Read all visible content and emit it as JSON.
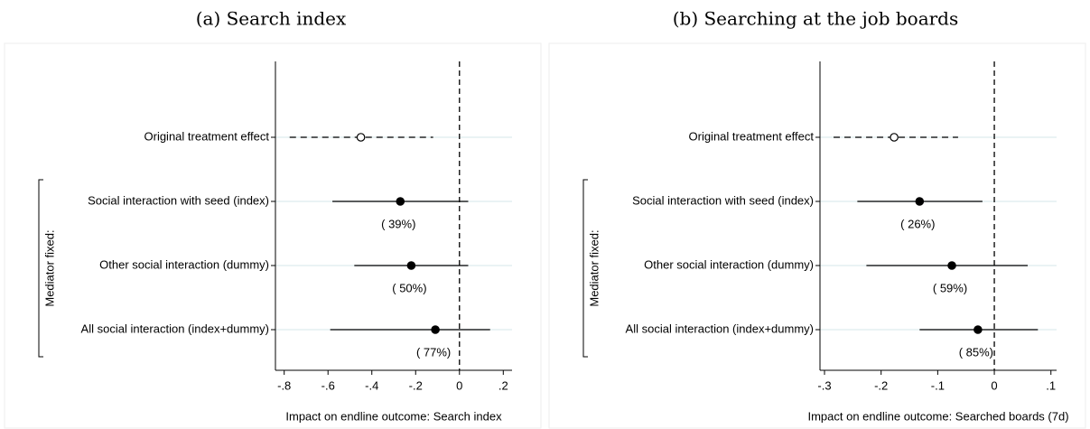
{
  "chart_data": [
    {
      "type": "coefplot",
      "title": "(a) Search index",
      "x_label": "Impact on endline outcome: Search index",
      "categories": [
        "Original treatment effect",
        "Social interaction with seed (index)",
        "Other social interaction (dummy)",
        "All social interaction (index+dummy)"
      ],
      "values": [
        -0.45,
        -0.27,
        -0.22,
        -0.11
      ],
      "ci_low": [
        -0.775,
        -0.58,
        -0.48,
        -0.59
      ],
      "ci_high": [
        -0.12,
        0.04,
        0.04,
        0.14
      ],
      "shares": [
        null,
        "( 39%)",
        "( 50%)",
        "( 77%)"
      ],
      "styles": [
        "dashed",
        "solid",
        "solid",
        "solid"
      ],
      "group": {
        "label": "Mediator fixed:",
        "rows": [
          1,
          3
        ]
      },
      "xref": 0,
      "xlim": [
        -0.84,
        0.24
      ],
      "xticks": [
        {
          "value": -0.8,
          "label": "-.8"
        },
        {
          "value": -0.6,
          "label": "-.6"
        },
        {
          "value": -0.4,
          "label": "-.4"
        },
        {
          "value": -0.2,
          "label": "-.2"
        },
        0,
        {
          "value": 0.2,
          "label": ".2"
        }
      ],
      "grid": true
    },
    {
      "type": "coefplot",
      "title": "(b) Searching at the job boards",
      "x_label": "Impact on endline outcome: Searched boards (7d)",
      "categories": [
        "Original treatment effect",
        "Social interaction with seed (index)",
        "Other social interaction (dummy)",
        "All social interaction (index+dummy)"
      ],
      "values": [
        -0.177,
        -0.132,
        -0.075,
        -0.029
      ],
      "ci_low": [
        -0.284,
        -0.242,
        -0.226,
        -0.132
      ],
      "ci_high": [
        -0.064,
        -0.021,
        0.059,
        0.077
      ],
      "shares": [
        null,
        "( 26%)",
        "( 59%)",
        "( 85%)"
      ],
      "styles": [
        "dashed",
        "solid",
        "solid",
        "solid"
      ],
      "group": {
        "label": "Mediator fixed:",
        "rows": [
          1,
          3
        ]
      },
      "xref": 0,
      "xlim": [
        -0.308,
        0.11
      ],
      "xticks": [
        {
          "value": -0.3,
          "label": "-.3"
        },
        {
          "value": -0.2,
          "label": "-.2"
        },
        {
          "value": -0.1,
          "label": "-.1"
        },
        0,
        {
          "value": 0.1,
          "label": ".1"
        }
      ],
      "grid": true
    }
  ]
}
